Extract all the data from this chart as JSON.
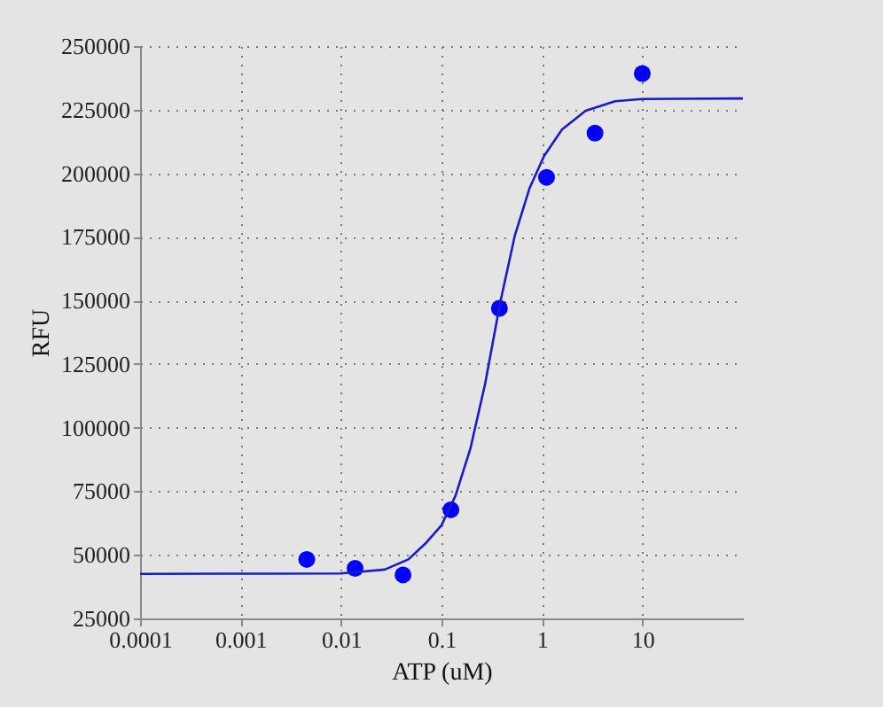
{
  "chart_data": {
    "type": "scatter",
    "xlabel": "ATP (uM)",
    "ylabel": "RFU",
    "log": "x",
    "grid": true,
    "marker": "circle",
    "xlim": [
      0.0001,
      100
    ],
    "xticks": [
      0.0001,
      0.001,
      0.01,
      0.1,
      1,
      10
    ],
    "ylim": [
      25000,
      250000
    ],
    "yticks": [
      25000,
      50000,
      75000,
      100000,
      125000,
      150000,
      175000,
      200000,
      225000,
      250000
    ],
    "series": [
      {
        "color": "#0000ff",
        "x": [
          0.00456,
          0.0138,
          0.0414,
          0.124,
          0.377,
          1.11,
          3.37,
          9.96
        ],
        "values": [
          48200,
          44700,
          42100,
          67700,
          146900,
          198400,
          215800,
          239200
        ]
      },
      {
        "type": "line",
        "color": "#1a1acc",
        "marker": "none",
        "line_style": "solid",
        "x": [
          0.0001,
          0.0018,
          0.01,
          0.0273,
          0.0468,
          0.0703,
          0.1,
          0.138,
          0.194,
          0.272,
          0.382,
          0.536,
          0.75,
          1.05,
          1.58,
          2.72,
          5.35,
          10,
          100
        ],
        "values": [
          42500,
          42600,
          42700,
          44200,
          48200,
          54700,
          61600,
          73300,
          91800,
          117300,
          148700,
          175400,
          194000,
          206800,
          217200,
          224600,
          228300,
          229200,
          229400
        ]
      }
    ]
  }
}
